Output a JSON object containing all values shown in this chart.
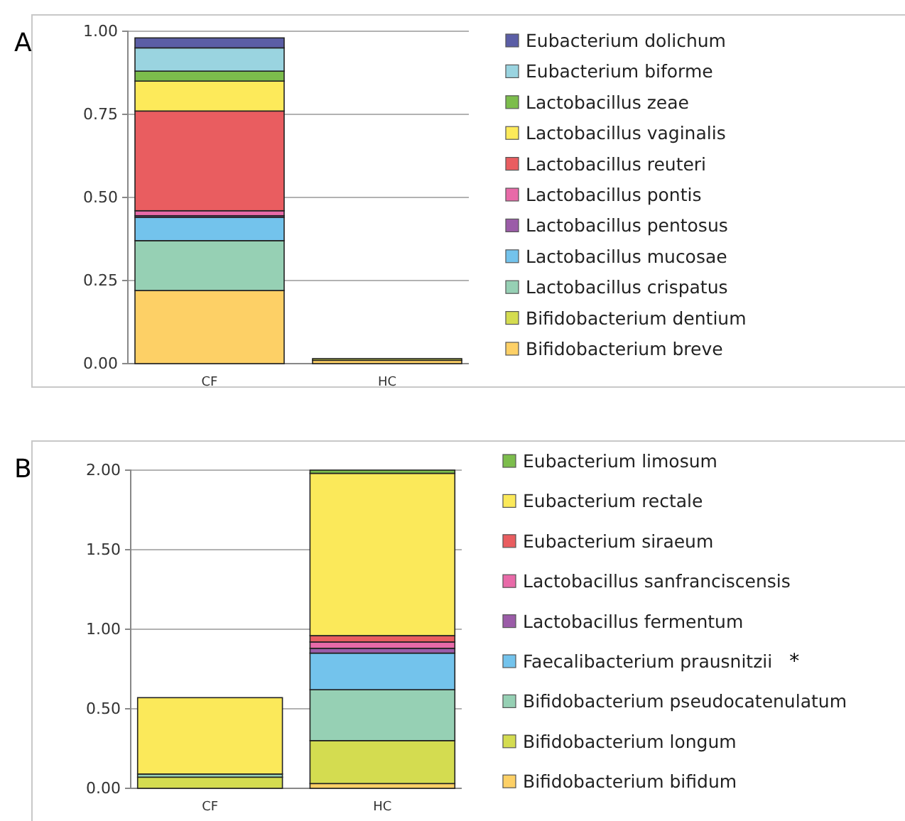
{
  "chart_data": [
    {
      "type": "bar",
      "title": "A",
      "stacked": true,
      "categories": [
        "CF",
        "HC"
      ],
      "ylim": [
        0,
        1
      ],
      "yticks": [
        {
          "value": 0,
          "label": "0.00"
        },
        {
          "value": 0.25,
          "label": "0.25"
        },
        {
          "value": 0.5,
          "label": "0.50"
        },
        {
          "value": 0.75,
          "label": "0.75"
        },
        {
          "value": 1,
          "label": "1.00"
        }
      ],
      "grid": "y",
      "legend": "right",
      "series": [
        {
          "name": "Bifidobacterium breve",
          "color": "#fdd066",
          "values": [
            0.22,
            0.01
          ]
        },
        {
          "name": "Bifidobacterium dentium",
          "color": "#d4dc50",
          "values": [
            0,
            0.005
          ]
        },
        {
          "name": "Lactobacillus crispatus",
          "color": "#96d0b4",
          "values": [
            0.15,
            0
          ]
        },
        {
          "name": "Lactobacillus mucosae",
          "color": "#73c3ec",
          "values": [
            0.07,
            0
          ]
        },
        {
          "name": "Lactobacillus pentosus",
          "color": "#9b5ca8",
          "values": [
            0.005,
            0
          ]
        },
        {
          "name": "Lactobacillus pontis",
          "color": "#e86aa8",
          "values": [
            0.015,
            0
          ]
        },
        {
          "name": "Lactobacillus reuteri",
          "color": "#e95d60",
          "values": [
            0.3,
            0
          ]
        },
        {
          "name": "Lactobacillus vaginalis",
          "color": "#fdea5a",
          "values": [
            0.09,
            0
          ]
        },
        {
          "name": "Lactobacillus zeae",
          "color": "#7cbd4c",
          "values": [
            0.03,
            0
          ]
        },
        {
          "name": "Eubacterium biforme",
          "color": "#9ad4e0",
          "values": [
            0.07,
            0
          ]
        },
        {
          "name": "Eubacterium dolichum",
          "color": "#5b5ea6",
          "values": [
            0.03,
            0
          ]
        }
      ]
    },
    {
      "type": "bar",
      "title": "B",
      "stacked": true,
      "categories": [
        "CF",
        "HC"
      ],
      "ylim": [
        0,
        2
      ],
      "yticks": [
        {
          "value": 0,
          "label": "0.00"
        },
        {
          "value": 0.5,
          "label": "0.50"
        },
        {
          "value": 1,
          "label": "1.00"
        },
        {
          "value": 1.5,
          "label": "1.50"
        },
        {
          "value": 2,
          "label": "2.00"
        }
      ],
      "grid": "y",
      "legend": "right",
      "annotations": [
        "*"
      ],
      "series": [
        {
          "name": "Bifidobacterium bifidum",
          "color": "#fdd066",
          "values": [
            0,
            0.03
          ]
        },
        {
          "name": "Bifidobacterium longum",
          "color": "#d4dc50",
          "values": [
            0.07,
            0.27
          ]
        },
        {
          "name": "Bifidobacterium pseudocatenulatum",
          "color": "#96d0b4",
          "values": [
            0.02,
            0.32
          ]
        },
        {
          "name": "Faecalibacterium prausnitzii",
          "color": "#73c3ec",
          "values": [
            0,
            0.23
          ]
        },
        {
          "name": "Lactobacillus fermentum",
          "color": "#9b5ca8",
          "values": [
            0,
            0.03
          ]
        },
        {
          "name": "Lactobacillus sanfranciscensis",
          "color": "#e86aa8",
          "values": [
            0,
            0.04
          ]
        },
        {
          "name": "Eubacterium siraeum",
          "color": "#e95d60",
          "values": [
            0,
            0.04
          ]
        },
        {
          "name": "Eubacterium rectale",
          "color": "#fbe95a",
          "values": [
            0.48,
            1.02
          ]
        },
        {
          "name": "Eubacterium limosum",
          "color": "#7cbd4c",
          "values": [
            0,
            0.02
          ]
        }
      ]
    }
  ]
}
